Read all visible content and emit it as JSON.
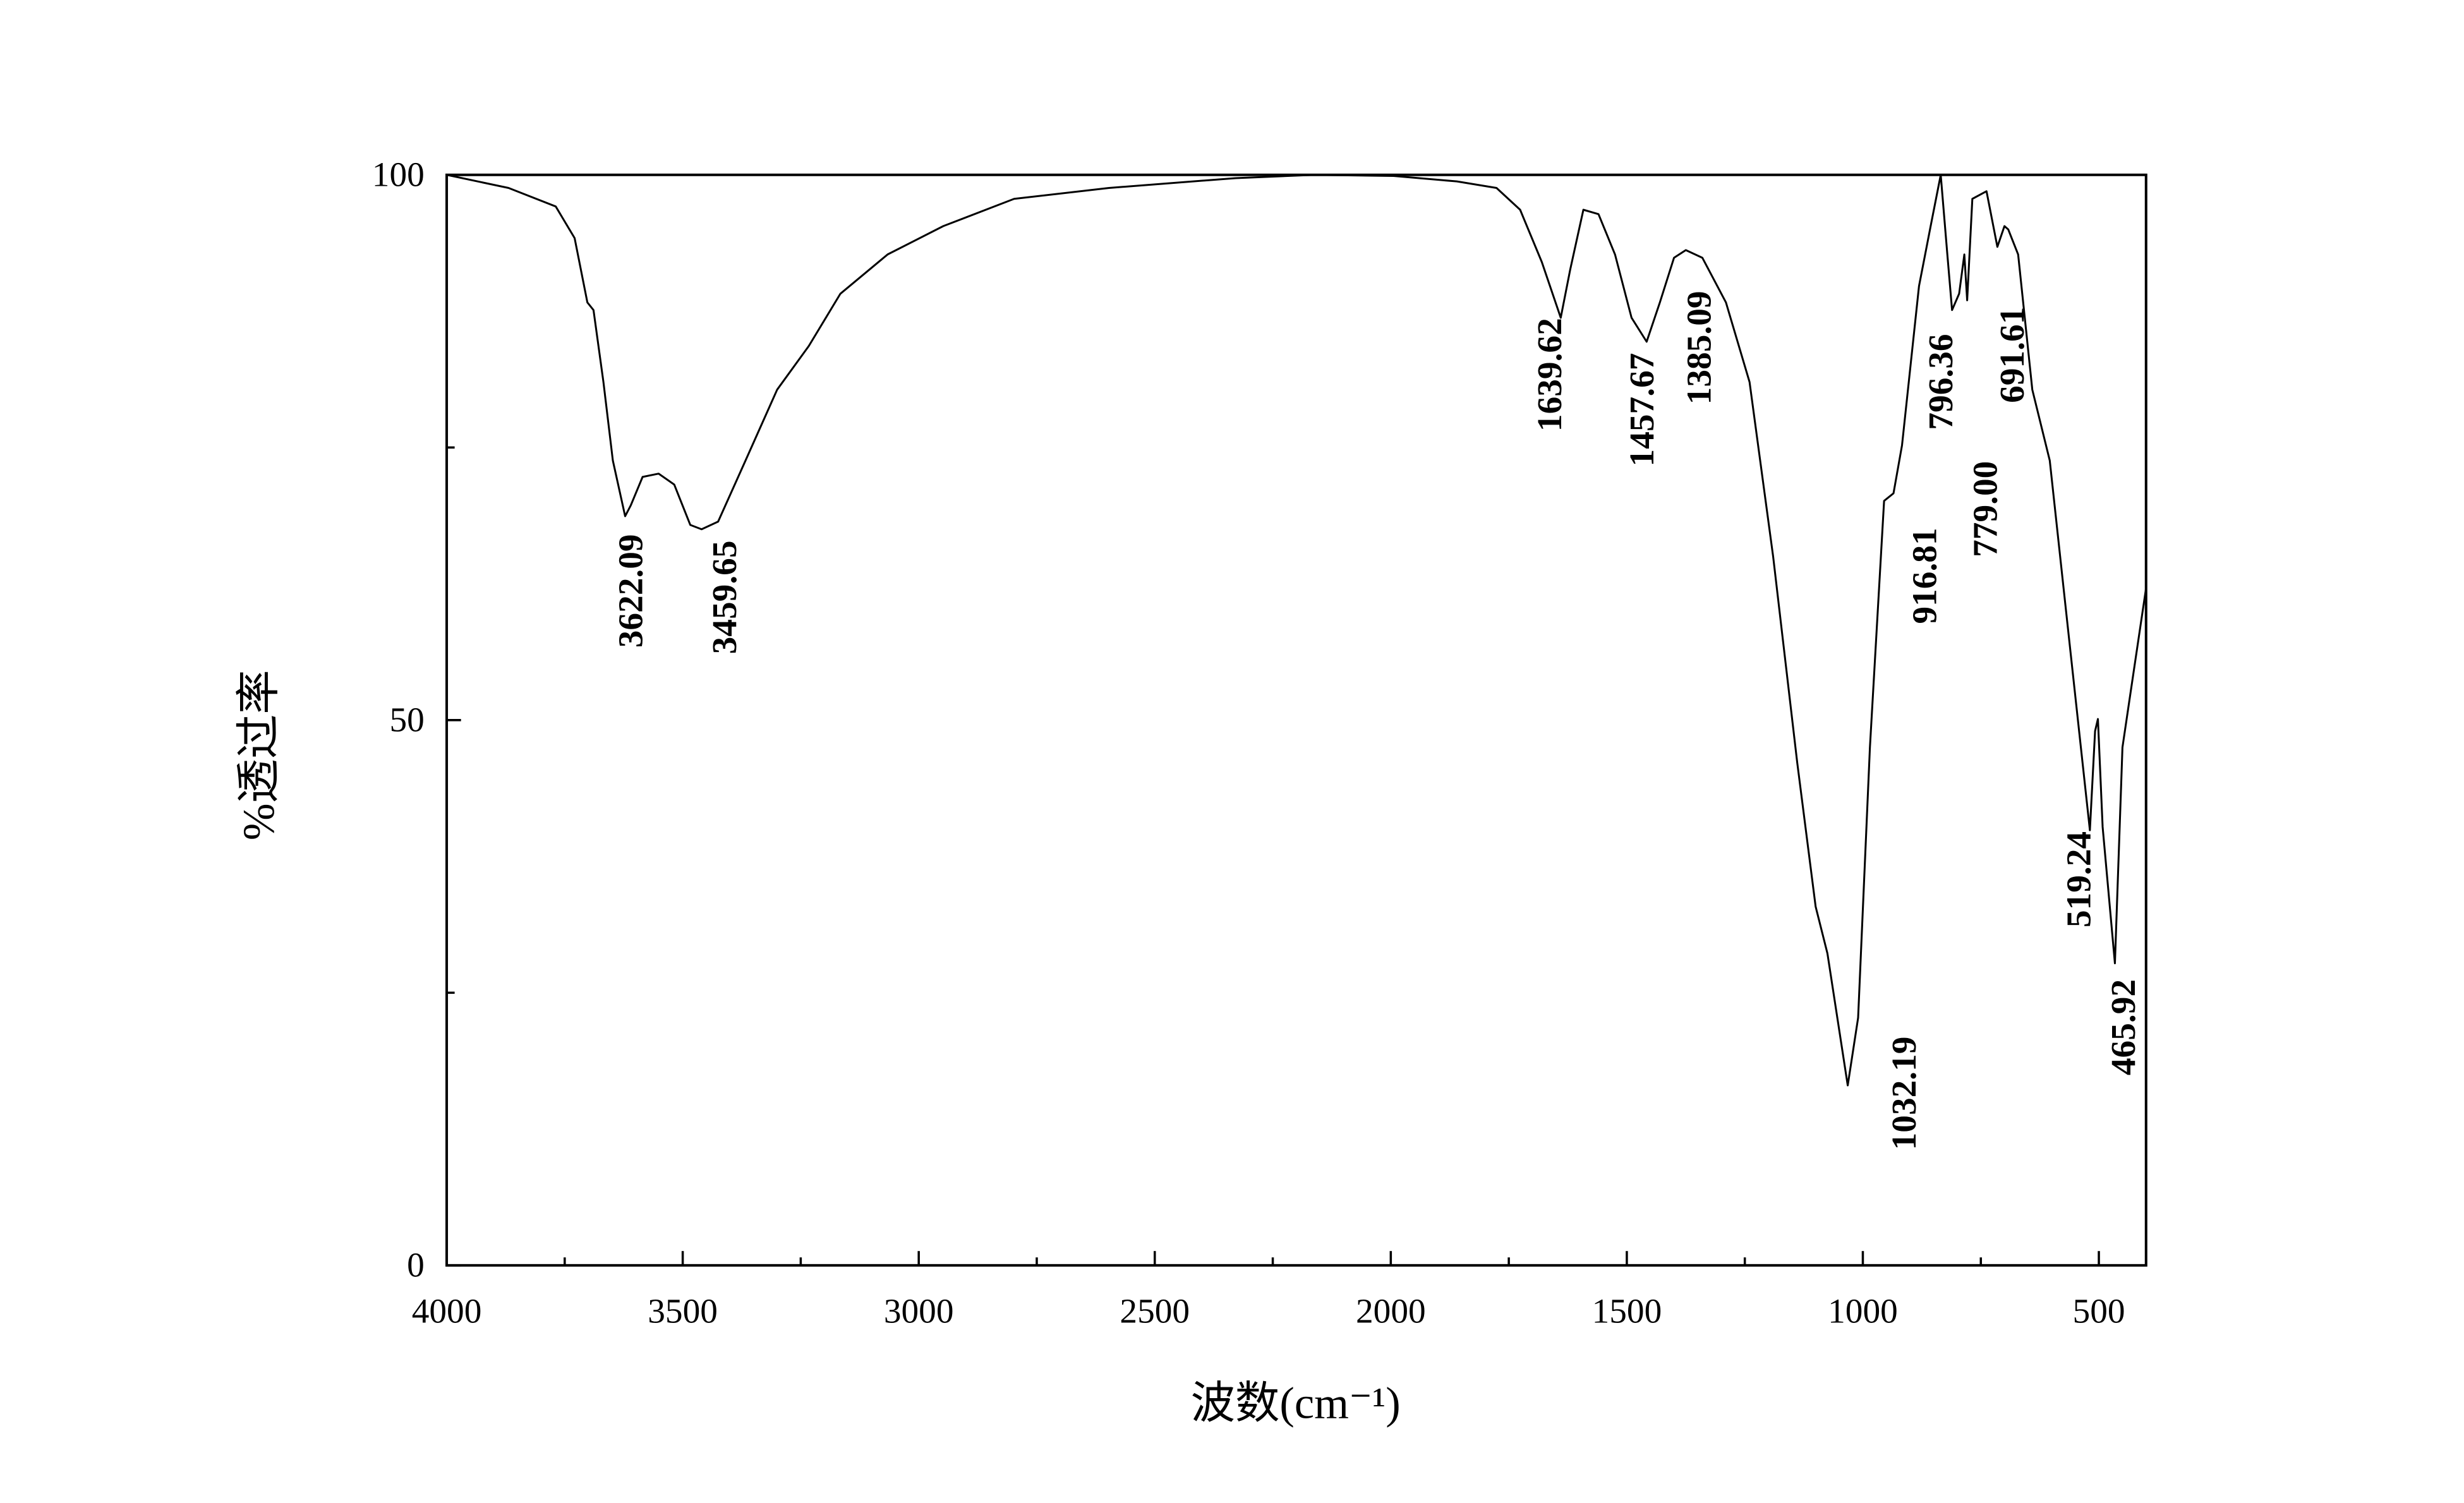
{
  "chart_data": {
    "type": "line",
    "x_label": "波数(cm⁻¹)",
    "y_label": "%透过率",
    "color": "#000000",
    "xlim": [
      4000,
      400
    ],
    "ylim": [
      0,
      100
    ],
    "xticks": [
      4000,
      3500,
      3000,
      2500,
      2000,
      1500,
      1000,
      500
    ],
    "xticks_minor": [
      3750,
      3250,
      2750,
      2250,
      1750,
      1250,
      750
    ],
    "yticks": [
      0,
      50,
      100
    ],
    "yticks_minor": [
      25,
      75
    ],
    "x": [
      4000,
      3869,
      3769,
      3729,
      3702,
      3689,
      3668,
      3648,
      3622,
      3610,
      3585,
      3551,
      3518,
      3484,
      3460,
      3425,
      3367,
      3300,
      3233,
      3166,
      3066,
      2948,
      2798,
      2597,
      2329,
      2161,
      1994,
      1860,
      1776,
      1726,
      1680,
      1640,
      1620,
      1592,
      1560,
      1525,
      1490,
      1458,
      1430,
      1400,
      1375,
      1340,
      1290,
      1240,
      1190,
      1139,
      1100,
      1075,
      1032,
      1010,
      985,
      955,
      935,
      917,
      881,
      855,
      835,
      821,
      811,
      796,
      785,
      779,
      768,
      738,
      715,
      700,
      692,
      671,
      641,
      604,
      571,
      519,
      508,
      502,
      492,
      466,
      450,
      435,
      400
    ],
    "values": [
      100,
      98.8,
      97.1,
      94.2,
      88.3,
      87.6,
      81,
      73.8,
      68.7,
      69.7,
      72.3,
      72.6,
      71.6,
      67.9,
      67.5,
      68.2,
      73.8,
      80.3,
      84.3,
      89.1,
      92.7,
      95.3,
      97.8,
      98.8,
      99.7,
      100,
      99.9,
      99.4,
      98.8,
      96.8,
      92,
      86.9,
      91.3,
      96.8,
      96.4,
      92.7,
      86.9,
      84.7,
      88.3,
      92.4,
      93.1,
      92.4,
      88.3,
      81,
      65,
      46.1,
      32.9,
      28.6,
      16.5,
      22.7,
      47.5,
      70.1,
      70.8,
      75.2,
      89.8,
      95.6,
      100,
      92.7,
      87.6,
      89.1,
      92.7,
      88.5,
      97.8,
      98.5,
      93.4,
      95.3,
      95,
      92.7,
      80.3,
      73.8,
      60.6,
      39.9,
      49,
      50.1,
      40.2,
      27.7,
      47.5,
      51.9,
      62.1
    ],
    "peaks": [
      {
        "value": 3622.09,
        "label": "3622.09"
      },
      {
        "value": 3459.65,
        "label": "3459.65"
      },
      {
        "value": 1639.62,
        "label": "1639.62"
      },
      {
        "value": 1457.67,
        "label": "1457.67"
      },
      {
        "value": 1385.09,
        "label": "1385.09"
      },
      {
        "value": 1032.19,
        "label": "1032.19"
      },
      {
        "value": 916.81,
        "label": "916.81"
      },
      {
        "value": 796.36,
        "label": "796.36"
      },
      {
        "value": 779.0,
        "label": "779.00"
      },
      {
        "value": 691.61,
        "label": "691.61"
      },
      {
        "value": 519.24,
        "label": "519.24"
      },
      {
        "value": 465.92,
        "label": "465.92"
      }
    ]
  }
}
